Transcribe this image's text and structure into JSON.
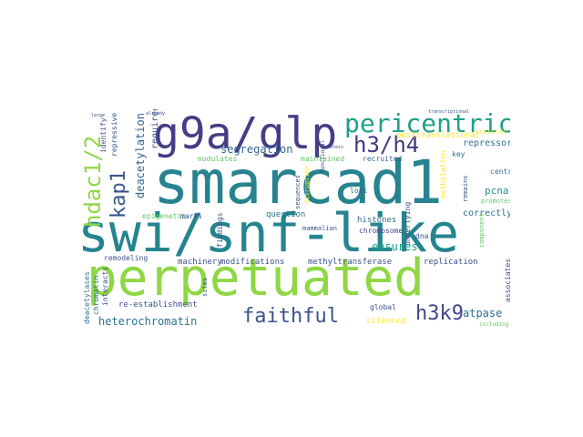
{
  "words": {
    "smarcad1": "smarcad1",
    "swi_snf_like": "swi/snf-like",
    "perpetuated": "perpetuated",
    "g9a_glp": "g9a/glp",
    "pericentric": "pericentric",
    "h3_h4": "h3/h4",
    "hdac1_2": "hdac1/2",
    "kap1": "kap1",
    "faithful": "faithful",
    "h3k9": "h3k9",
    "deacetylation": "deacetylation",
    "required": "required",
    "segregation": "segregation",
    "posttranslational": "posttranslational",
    "repressors": "repressors",
    "key": "key",
    "identify": "identify",
    "repressive": "repressive",
    "modulates": "modulates",
    "maintained": "maintained",
    "recruited": "recruited",
    "methylation": "methylation",
    "central": "central",
    "pcna": "pcna",
    "loci": "loci",
    "functional": "functional",
    "remains": "remains",
    "epigenetic": "epigenetic",
    "marks": "marks",
    "question": "question",
    "sequences": "sequences",
    "disruption": "disruption",
    "correctly": "correctly",
    "histones": "histones",
    "chromosome": "chromosome",
    "mammalian": "mammalian",
    "findings": "findings",
    "underlying": "underlying",
    "dna": "dna",
    "ensures": "ensures",
    "component": "component",
    "promotes": "promotes",
    "machinery": "machinery",
    "modifications": "modifications",
    "methyltransferase": "methyltransferase",
    "replication": "replication",
    "remodeling": "remodeling",
    "deacetylases": "deacetylases",
    "chromatin": "chromatin",
    "interacts": "interacts",
    "sites": "sites",
    "re_establishment": "re-establishment",
    "global": "global",
    "atpase": "atpase",
    "heterochromatin": "heterochromatin",
    "silenced": "silenced",
    "associates": "associates",
    "including": "including",
    "critical": "critical",
    "large": "large",
    "already": "already",
    "protein": "protein",
    "transcriptional": "transcriptional"
  }
}
